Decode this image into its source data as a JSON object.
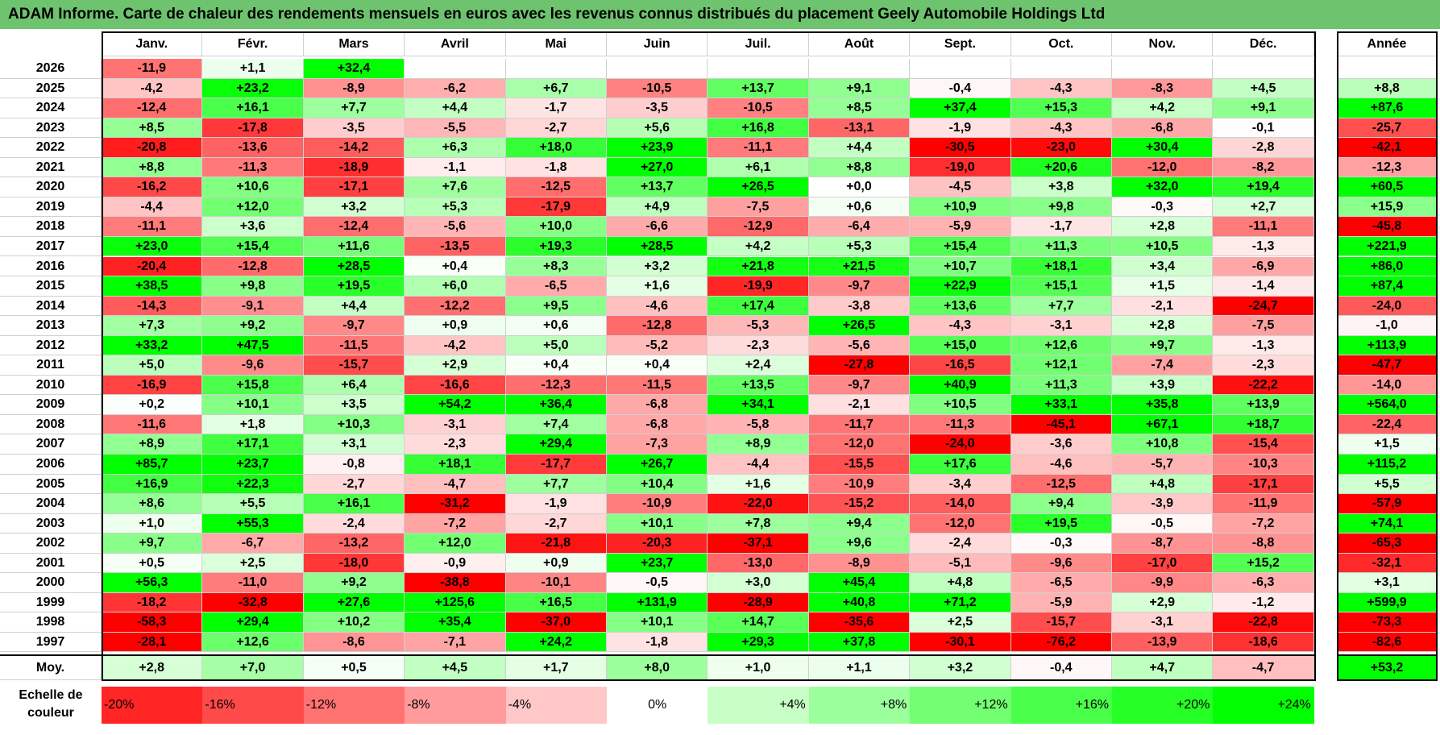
{
  "title": "ADAM Informe. Carte de chaleur des rendements mensuels en euros avec les revenus connus distribués du placement Geely Automobile Holdings Ltd",
  "chart_data": {
    "type": "heatmap",
    "months": [
      "Janv.",
      "Févr.",
      "Mars",
      "Avril",
      "Mai",
      "Juin",
      "Juil.",
      "Août",
      "Sept.",
      "Oct.",
      "Nov.",
      "Déc."
    ],
    "year_header": "Année",
    "avg_label": "Moy.",
    "rows": [
      {
        "year": "2026",
        "months": [
          "-11,9",
          "+1,1",
          "+32,4",
          "",
          "",
          "",
          "",
          "",
          "",
          "",
          "",
          ""
        ],
        "total": ""
      },
      {
        "year": "2025",
        "months": [
          "-4,2",
          "+23,2",
          "-8,9",
          "-6,2",
          "+6,7",
          "-10,5",
          "+13,7",
          "+9,1",
          "-0,4",
          "-4,3",
          "-8,3",
          "+4,5"
        ],
        "total": "+8,8"
      },
      {
        "year": "2024",
        "months": [
          "-12,4",
          "+16,1",
          "+7,7",
          "+4,4",
          "-1,7",
          "-3,5",
          "-10,5",
          "+8,5",
          "+37,4",
          "+15,3",
          "+4,2",
          "+9,1"
        ],
        "total": "+87,6"
      },
      {
        "year": "2023",
        "months": [
          "+8,5",
          "-17,8",
          "-3,5",
          "-5,5",
          "-2,7",
          "+5,6",
          "+16,8",
          "-13,1",
          "-1,9",
          "-4,3",
          "-6,8",
          "-0,1"
        ],
        "total": "-25,7"
      },
      {
        "year": "2022",
        "months": [
          "-20,8",
          "-13,6",
          "-14,2",
          "+6,3",
          "+18,0",
          "+23,9",
          "-11,1",
          "+4,4",
          "-30,5",
          "-23,0",
          "+30,4",
          "-2,8"
        ],
        "total": "-42,1"
      },
      {
        "year": "2021",
        "months": [
          "+8,8",
          "-11,3",
          "-18,9",
          "-1,1",
          "-1,8",
          "+27,0",
          "+6,1",
          "+8,8",
          "-19,0",
          "+20,6",
          "-12,0",
          "-8,2"
        ],
        "total": "-12,3"
      },
      {
        "year": "2020",
        "months": [
          "-16,2",
          "+10,6",
          "-17,1",
          "+7,6",
          "-12,5",
          "+13,7",
          "+26,5",
          "+0,0",
          "-4,5",
          "+3,8",
          "+32,0",
          "+19,4"
        ],
        "total": "+60,5"
      },
      {
        "year": "2019",
        "months": [
          "-4,4",
          "+12,0",
          "+3,2",
          "+5,3",
          "-17,9",
          "+4,9",
          "-7,5",
          "+0,6",
          "+10,9",
          "+9,8",
          "-0,3",
          "+2,7"
        ],
        "total": "+15,9"
      },
      {
        "year": "2018",
        "months": [
          "-11,1",
          "+3,6",
          "-12,4",
          "-5,6",
          "+10,0",
          "-6,6",
          "-12,9",
          "-6,4",
          "-5,9",
          "-1,7",
          "+2,8",
          "-11,1"
        ],
        "total": "-45,8"
      },
      {
        "year": "2017",
        "months": [
          "+23,0",
          "+15,4",
          "+11,6",
          "-13,5",
          "+19,3",
          "+28,5",
          "+4,2",
          "+5,3",
          "+15,4",
          "+11,3",
          "+10,5",
          "-1,3"
        ],
        "total": "+221,9"
      },
      {
        "year": "2016",
        "months": [
          "-20,4",
          "-12,8",
          "+28,5",
          "+0,4",
          "+8,3",
          "+3,2",
          "+21,8",
          "+21,5",
          "+10,7",
          "+18,1",
          "+3,4",
          "-6,9"
        ],
        "total": "+86,0"
      },
      {
        "year": "2015",
        "months": [
          "+38,5",
          "+9,8",
          "+19,5",
          "+6,0",
          "-6,5",
          "+1,6",
          "-19,9",
          "-9,7",
          "+22,9",
          "+15,1",
          "+1,5",
          "-1,4"
        ],
        "total": "+87,4"
      },
      {
        "year": "2014",
        "months": [
          "-14,3",
          "-9,1",
          "+4,4",
          "-12,2",
          "+9,5",
          "-4,6",
          "+17,4",
          "-3,8",
          "+13,6",
          "+7,7",
          "-2,1",
          "-24,7"
        ],
        "total": "-24,0"
      },
      {
        "year": "2013",
        "months": [
          "+7,3",
          "+9,2",
          "-9,7",
          "+0,9",
          "+0,6",
          "-12,8",
          "-5,3",
          "+26,5",
          "-4,3",
          "-3,1",
          "+2,8",
          "-7,5"
        ],
        "total": "-1,0"
      },
      {
        "year": "2012",
        "months": [
          "+33,2",
          "+47,5",
          "-11,5",
          "-4,2",
          "+5,0",
          "-5,2",
          "-2,3",
          "-5,6",
          "+15,0",
          "+12,6",
          "+9,7",
          "-1,3"
        ],
        "total": "+113,9"
      },
      {
        "year": "2011",
        "months": [
          "+5,0",
          "-9,6",
          "-15,7",
          "+2,9",
          "+0,4",
          "+0,4",
          "+2,4",
          "-27,8",
          "-16,5",
          "+12,1",
          "-7,4",
          "-2,3"
        ],
        "total": "-47,7"
      },
      {
        "year": "2010",
        "months": [
          "-16,9",
          "+15,8",
          "+6,4",
          "-16,6",
          "-12,3",
          "-11,5",
          "+13,5",
          "-9,7",
          "+40,9",
          "+11,3",
          "+3,9",
          "-22,2"
        ],
        "total": "-14,0"
      },
      {
        "year": "2009",
        "months": [
          "+0,2",
          "+10,1",
          "+3,5",
          "+54,2",
          "+36,4",
          "-6,8",
          "+34,1",
          "-2,1",
          "+10,5",
          "+33,1",
          "+35,8",
          "+13,9"
        ],
        "total": "+564,0"
      },
      {
        "year": "2008",
        "months": [
          "-11,6",
          "+1,8",
          "+10,3",
          "-3,1",
          "+7,4",
          "-6,8",
          "-5,8",
          "-11,7",
          "-11,3",
          "-45,1",
          "+67,1",
          "+18,7"
        ],
        "total": "-22,4"
      },
      {
        "year": "2007",
        "months": [
          "+8,9",
          "+17,1",
          "+3,1",
          "-2,3",
          "+29,4",
          "-7,3",
          "+8,9",
          "-12,0",
          "-24,0",
          "-3,6",
          "+10,8",
          "-15,4"
        ],
        "total": "+1,5"
      },
      {
        "year": "2006",
        "months": [
          "+85,7",
          "+23,7",
          "-0,8",
          "+18,1",
          "-17,7",
          "+26,7",
          "-4,4",
          "-15,5",
          "+17,6",
          "-4,6",
          "-5,7",
          "-10,3"
        ],
        "total": "+115,2"
      },
      {
        "year": "2005",
        "months": [
          "+16,9",
          "+22,3",
          "-2,7",
          "-4,7",
          "+7,7",
          "+10,4",
          "+1,6",
          "-10,9",
          "-3,4",
          "-12,5",
          "+4,8",
          "-17,1"
        ],
        "total": "+5,5"
      },
      {
        "year": "2004",
        "months": [
          "+8,6",
          "+5,5",
          "+16,1",
          "-31,2",
          "-1,9",
          "-10,9",
          "-22,0",
          "-15,2",
          "-14,0",
          "+9,4",
          "-3,9",
          "-11,9"
        ],
        "total": "-57,9"
      },
      {
        "year": "2003",
        "months": [
          "+1,0",
          "+55,3",
          "-2,4",
          "-7,2",
          "-2,7",
          "+10,1",
          "+7,8",
          "+9,4",
          "-12,0",
          "+19,5",
          "-0,5",
          "-7,2"
        ],
        "total": "+74,1"
      },
      {
        "year": "2002",
        "months": [
          "+9,7",
          "-6,7",
          "-13,2",
          "+12,0",
          "-21,8",
          "-20,3",
          "-37,1",
          "+9,6",
          "-2,4",
          "-0,3",
          "-8,7",
          "-8,8"
        ],
        "total": "-65,3"
      },
      {
        "year": "2001",
        "months": [
          "+0,5",
          "+2,5",
          "-18,0",
          "-0,9",
          "+0,9",
          "+23,7",
          "-13,0",
          "-8,9",
          "-5,1",
          "-9,6",
          "-17,0",
          "+15,2"
        ],
        "total": "-32,1"
      },
      {
        "year": "2000",
        "months": [
          "+56,3",
          "-11,0",
          "+9,2",
          "-38,8",
          "-10,1",
          "-0,5",
          "+3,0",
          "+45,4",
          "+4,8",
          "-6,5",
          "-9,9",
          "-6,3"
        ],
        "total": "+3,1"
      },
      {
        "year": "1999",
        "months": [
          "-18,2",
          "-32,8",
          "+27,6",
          "+125,6",
          "+16,5",
          "+131,9",
          "-28,9",
          "+40,8",
          "+71,2",
          "-5,9",
          "+2,9",
          "-1,2"
        ],
        "total": "+599,9"
      },
      {
        "year": "1998",
        "months": [
          "-58,3",
          "+29,4",
          "+10,2",
          "+35,4",
          "-37,0",
          "+10,1",
          "+14,7",
          "-35,6",
          "+2,5",
          "-15,7",
          "-3,1",
          "-22,8"
        ],
        "total": "-73,3"
      },
      {
        "year": "1997",
        "months": [
          "-28,1",
          "+12,6",
          "-8,6",
          "-7,1",
          "+24,2",
          "-1,8",
          "+29,3",
          "+37,8",
          "-30,1",
          "-76,2",
          "-13,9",
          "-18,6"
        ],
        "total": "-82,6"
      }
    ],
    "averages": {
      "months": [
        "+2,8",
        "+7,0",
        "+0,5",
        "+4,5",
        "+1,7",
        "+8,0",
        "+1,0",
        "+1,1",
        "+3,2",
        "-0,4",
        "+4,7",
        "-4,7"
      ],
      "total": "+53,2"
    },
    "scale": {
      "label_line1": "Echelle de",
      "label_line2": "couleur",
      "labels": [
        "-20%",
        "-16%",
        "-12%",
        "-8%",
        "-4%",
        "0%",
        "+4%",
        "+8%",
        "+12%",
        "+16%",
        "+20%",
        "+24%"
      ],
      "values": [
        -20,
        -16,
        -12,
        -8,
        -4,
        0,
        4,
        8,
        12,
        16,
        20,
        24
      ]
    },
    "colors": {
      "strong_red": "#ff0000",
      "strong_green": "#00ff00",
      "title_bar": "#6ec36e",
      "neutral": "#ffffff"
    }
  }
}
